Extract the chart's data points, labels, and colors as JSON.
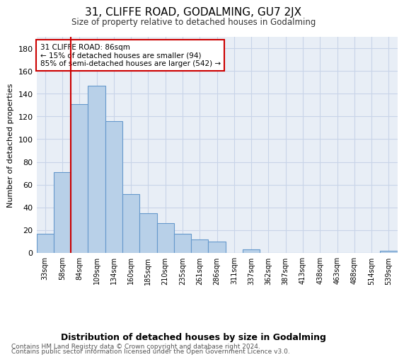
{
  "title": "31, CLIFFE ROAD, GODALMING, GU7 2JX",
  "subtitle": "Size of property relative to detached houses in Godalming",
  "xlabel_bottom": "Distribution of detached houses by size in Godalming",
  "ylabel": "Number of detached properties",
  "categories": [
    "33sqm",
    "58sqm",
    "84sqm",
    "109sqm",
    "134sqm",
    "160sqm",
    "185sqm",
    "210sqm",
    "235sqm",
    "261sqm",
    "286sqm",
    "311sqm",
    "337sqm",
    "362sqm",
    "387sqm",
    "413sqm",
    "438sqm",
    "463sqm",
    "488sqm",
    "514sqm",
    "539sqm"
  ],
  "values": [
    17,
    71,
    131,
    147,
    116,
    52,
    35,
    26,
    17,
    12,
    10,
    0,
    3,
    0,
    0,
    0,
    0,
    0,
    0,
    0,
    2
  ],
  "bar_color": "#b8d0e8",
  "bar_edge_color": "#6699cc",
  "red_line_index": 2,
  "annotation_title": "31 CLIFFE ROAD: 86sqm",
  "annotation_line1": "← 15% of detached houses are smaller (94)",
  "annotation_line2": "85% of semi-detached houses are larger (542) →",
  "annotation_box_color": "#ffffff",
  "annotation_box_edge_color": "#cc0000",
  "ylim": [
    0,
    190
  ],
  "yticks": [
    0,
    20,
    40,
    60,
    80,
    100,
    120,
    140,
    160,
    180
  ],
  "grid_color": "#c8d4e8",
  "bg_color": "#e8eef6",
  "footer_line1": "Contains HM Land Registry data © Crown copyright and database right 2024.",
  "footer_line2": "Contains public sector information licensed under the Open Government Licence v3.0."
}
